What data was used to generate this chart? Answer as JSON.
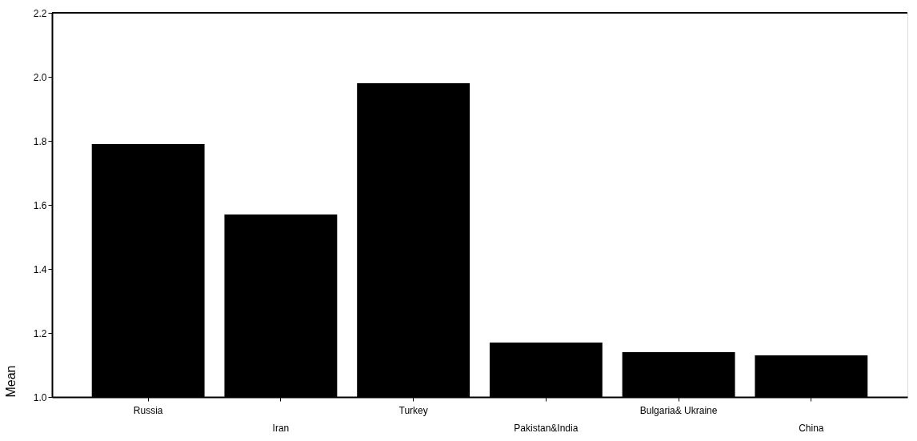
{
  "chart_data": {
    "type": "bar",
    "ylabel": "Mean",
    "categories": [
      "Russia",
      "Iran",
      "Turkey",
      "Pakistan&India",
      "Bulgaria& Ukraine",
      "China"
    ],
    "values": [
      1.79,
      1.57,
      1.98,
      1.17,
      1.14,
      1.13
    ],
    "color": "#000000",
    "ylim": [
      1.0,
      2.2
    ],
    "yticks": [
      {
        "value": 1.0,
        "label": "1.0"
      },
      1.2,
      1.4,
      1.6,
      1.8,
      {
        "value": 2.0,
        "label": "2.0"
      },
      2.2
    ],
    "grid": false
  }
}
